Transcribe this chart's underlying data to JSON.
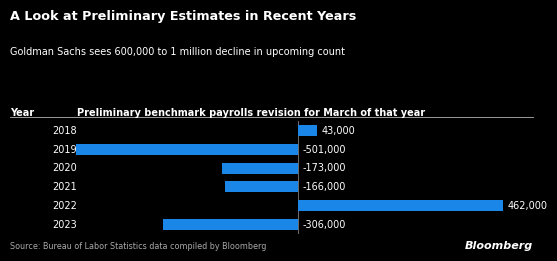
{
  "title": "A Look at Preliminary Estimates in Recent Years",
  "subtitle": "Goldman Sachs sees 600,000 to 1 million decline in upcoming count",
  "column_label_year": "Year",
  "column_label_data": "Preliminary benchmark payrolls revision for March of that year",
  "source": "Source: Bureau of Labor Statistics data compiled by Bloomberg",
  "bloomberg_label": "Bloomberg",
  "years": [
    "2018",
    "2019",
    "2020",
    "2021",
    "2022",
    "2023"
  ],
  "values": [
    43000,
    -501000,
    -173000,
    -166000,
    462000,
    -306000
  ],
  "bar_color": "#1a86e8",
  "bg_color": "#000000",
  "text_color": "#ffffff",
  "source_color": "#aaaaaa",
  "xlim_left": -560000,
  "xlim_right": 530000,
  "bar_height": 0.58
}
